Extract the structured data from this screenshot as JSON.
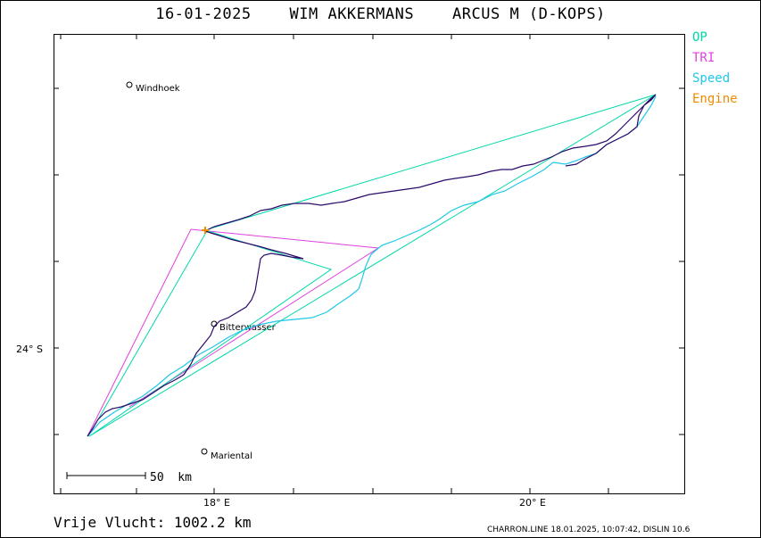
{
  "header": {
    "date": "16-01-2025",
    "pilot": "WIM AKKERMANS",
    "glider": "ARCUS M (D-KOPS)"
  },
  "legend": [
    {
      "label": "OP",
      "color": "#00d8a8"
    },
    {
      "label": "TRI",
      "color": "#e040e0"
    },
    {
      "label": "Speed",
      "color": "#20c8e8"
    },
    {
      "label": "Engine",
      "color": "#f08a00"
    }
  ],
  "axes": {
    "lat_label": "24° S",
    "lon_labels": [
      "18° E",
      "20° E"
    ]
  },
  "places": [
    {
      "name": "Windhoek"
    },
    {
      "name": "Bitterwasser"
    },
    {
      "name": "Mariental"
    }
  ],
  "scale_bar": {
    "label": "50  km"
  },
  "footer": {
    "distance": "Vrije Vlucht: 1002.2 km",
    "credit": "CHARRON.LINE 18.01.2025, 10:07:42, DISLIN 10.6"
  },
  "colors": {
    "track": "#2a0a6a",
    "op": "#00d8a8",
    "tri": "#e040e0",
    "speed": "#20c8e8",
    "engine": "#f08a00"
  }
}
